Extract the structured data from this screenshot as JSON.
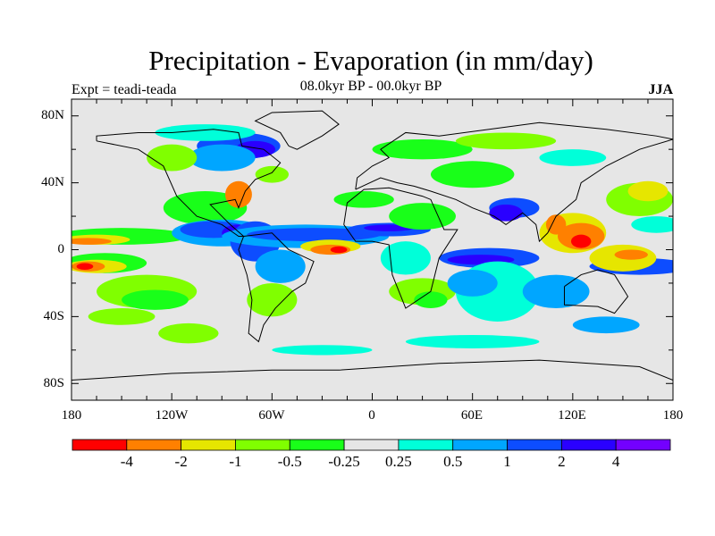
{
  "title": "Precipitation - Evaporation (in mm/day)",
  "subtitle": "08.0kyr BP - 00.0kyr BP",
  "experiment": "Expt = teadi-teada",
  "season": "JJA",
  "map": {
    "lat_labels": [
      "80N",
      "40N",
      "0",
      "40S",
      "80S"
    ],
    "lon_labels": [
      "180",
      "120W",
      "60W",
      "0",
      "60E",
      "120E",
      "180"
    ]
  },
  "colorbar": {
    "levels": [
      "-4",
      "-2",
      "-1",
      "-0.5",
      "-0.25",
      "0.25",
      "0.5",
      "1",
      "2",
      "4"
    ],
    "colors": [
      "#ff0000",
      "#ff8000",
      "#e6e600",
      "#80ff00",
      "#19ff19",
      "#e6e6e6",
      "#00ffd9",
      "#00a6ff",
      "#0d4dff",
      "#2a00ff",
      "#7300ff"
    ]
  }
}
